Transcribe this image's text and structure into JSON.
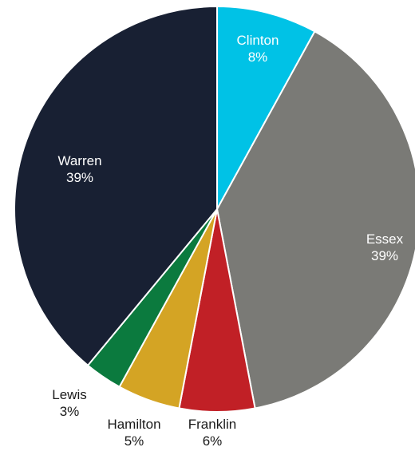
{
  "chart_data": {
    "type": "pie",
    "start_angle_deg": 0,
    "direction": "clockwise",
    "slices": [
      {
        "label": "Clinton",
        "value": 8,
        "value_label": "8%",
        "color": "#00c2e6",
        "text_color": "#ffffff",
        "label_inside": true
      },
      {
        "label": "Essex",
        "value": 39,
        "value_label": "39%",
        "color": "#7a7a76",
        "text_color": "#ffffff",
        "label_inside": true
      },
      {
        "label": "Franklin",
        "value": 6,
        "value_label": "6%",
        "color": "#c12026",
        "text_color": "#1a1a1a",
        "label_inside": false
      },
      {
        "label": "Hamilton",
        "value": 5,
        "value_label": "5%",
        "color": "#d4a424",
        "text_color": "#1a1a1a",
        "label_inside": false
      },
      {
        "label": "Lewis",
        "value": 3,
        "value_label": "3%",
        "color": "#0b7a3e",
        "text_color": "#1a1a1a",
        "label_inside": false
      },
      {
        "label": "Warren",
        "value": 39,
        "value_label": "39%",
        "color": "#182033",
        "text_color": "#ffffff",
        "label_inside": true
      }
    ]
  }
}
